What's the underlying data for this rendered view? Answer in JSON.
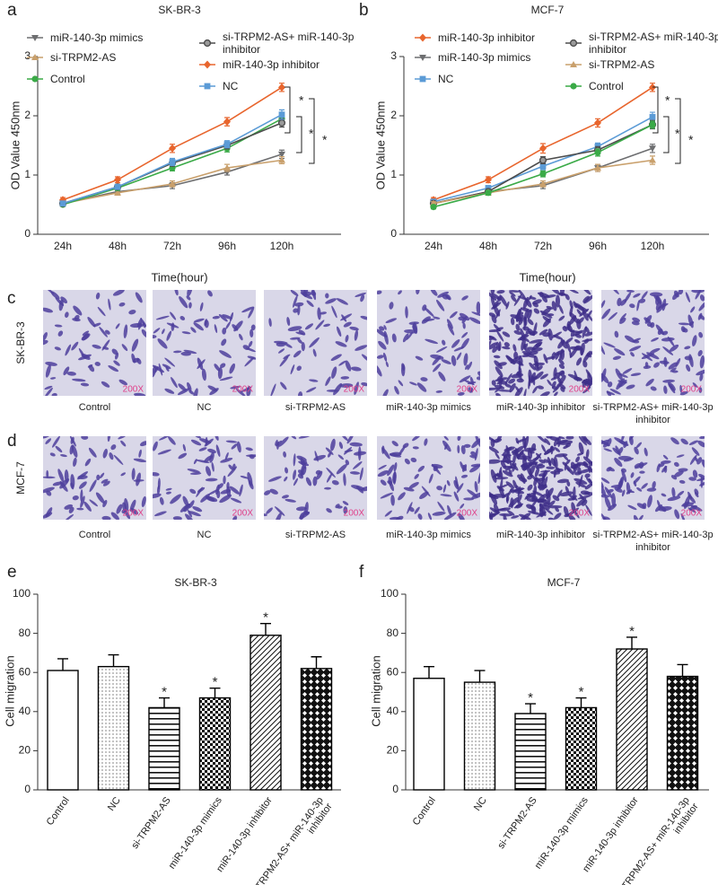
{
  "chart_data": [
    {
      "type": "line",
      "panel_label": "a",
      "title": "SK-BR-3",
      "x_label": "Time(hour)",
      "y_label": "OD Value 450nm",
      "categories": [
        "24h",
        "48h",
        "72h",
        "96h",
        "120h"
      ],
      "ylim": [
        0,
        3
      ],
      "yticks": [
        0,
        1,
        2,
        3
      ],
      "series": [
        {
          "name": "miR-140-3p mimics",
          "color": "#6d6e70",
          "marker": "triangle-down",
          "values": [
            0.52,
            0.72,
            0.82,
            1.05,
            1.35
          ],
          "errors": [
            0.03,
            0.04,
            0.05,
            0.05,
            0.07
          ]
        },
        {
          "name": "si-TRPM2-AS",
          "color": "#c9a06c",
          "marker": "triangle",
          "values": [
            0.52,
            0.7,
            0.85,
            1.12,
            1.25
          ],
          "errors": [
            0.03,
            0.04,
            0.05,
            0.06,
            0.06
          ]
        },
        {
          "name": "Control",
          "color": "#3aaa47",
          "marker": "circle",
          "values": [
            0.5,
            0.78,
            1.12,
            1.45,
            1.95
          ],
          "errors": [
            0.03,
            0.04,
            0.05,
            0.06,
            0.07
          ]
        },
        {
          "name": "si-TRPM2-AS+ miR-140-3p inhibitor",
          "color": "#4d4d4d",
          "marker": "circle-gray",
          "values": [
            0.52,
            0.8,
            1.2,
            1.5,
            1.88
          ],
          "errors": [
            0.03,
            0.04,
            0.05,
            0.06,
            0.07
          ]
        },
        {
          "name": "miR-140-3p inhibitor",
          "color": "#e8652d",
          "marker": "diamond",
          "values": [
            0.58,
            0.92,
            1.45,
            1.9,
            2.48
          ],
          "errors": [
            0.04,
            0.05,
            0.07,
            0.07,
            0.07
          ]
        },
        {
          "name": "NC",
          "color": "#5b9bd6",
          "marker": "square",
          "values": [
            0.52,
            0.8,
            1.22,
            1.52,
            2.02
          ],
          "errors": [
            0.03,
            0.04,
            0.06,
            0.06,
            0.08
          ]
        }
      ],
      "annotations": [
        "*",
        "*",
        "*"
      ]
    },
    {
      "type": "line",
      "panel_label": "b",
      "title": "MCF-7",
      "x_label": "Time(hour)",
      "y_label": "OD Value 450nm",
      "categories": [
        "24h",
        "48h",
        "72h",
        "96h",
        "120h"
      ],
      "ylim": [
        0,
        3
      ],
      "yticks": [
        0,
        1,
        2,
        3
      ],
      "series": [
        {
          "name": "miR-140-3p inhibitor",
          "color": "#e8652d",
          "marker": "diamond",
          "values": [
            0.58,
            0.92,
            1.45,
            1.88,
            2.48
          ],
          "errors": [
            0.04,
            0.05,
            0.08,
            0.07,
            0.07
          ]
        },
        {
          "name": "miR-140-3p mimics",
          "color": "#6d6e70",
          "marker": "triangle-down",
          "values": [
            0.52,
            0.72,
            0.82,
            1.12,
            1.45
          ],
          "errors": [
            0.03,
            0.04,
            0.05,
            0.06,
            0.07
          ]
        },
        {
          "name": "NC",
          "color": "#5b9bd6",
          "marker": "square",
          "values": [
            0.55,
            0.78,
            1.15,
            1.48,
            1.98
          ],
          "errors": [
            0.03,
            0.04,
            0.06,
            0.06,
            0.08
          ]
        },
        {
          "name": "si-TRPM2-AS+ miR-140-3p inhibitor",
          "color": "#4d4d4d",
          "marker": "circle-gray",
          "values": [
            0.52,
            0.72,
            1.25,
            1.42,
            1.85
          ],
          "errors": [
            0.03,
            0.04,
            0.06,
            0.06,
            0.07
          ]
        },
        {
          "name": "si-TRPM2-AS",
          "color": "#c9a06c",
          "marker": "triangle",
          "values": [
            0.52,
            0.7,
            0.85,
            1.12,
            1.25
          ],
          "errors": [
            0.03,
            0.04,
            0.05,
            0.06,
            0.07
          ]
        },
        {
          "name": "Control",
          "color": "#3aaa47",
          "marker": "circle",
          "values": [
            0.46,
            0.7,
            1.02,
            1.38,
            1.85
          ],
          "errors": [
            0.03,
            0.04,
            0.05,
            0.06,
            0.06
          ]
        }
      ],
      "annotations": [
        "*",
        "*",
        "*"
      ]
    },
    {
      "type": "bar",
      "panel_label": "e",
      "title": "SK-BR-3",
      "y_label": "Cell migration",
      "categories": [
        "Control",
        "NC",
        "si-TRPM2-AS",
        "miR-140-3p mimics",
        "miR-140-3p inhibitor",
        "si-TRPM2-AS+ miR-140-3p inhibitor"
      ],
      "values": [
        61,
        63,
        42,
        47,
        79,
        62
      ],
      "errors": [
        6,
        6,
        5,
        5,
        6,
        6
      ],
      "significance": [
        null,
        null,
        "*",
        "*",
        "*",
        null
      ],
      "patterns": [
        "none",
        "dots",
        "hlines",
        "checker",
        "diagonal",
        "cross"
      ],
      "color": "#000000",
      "ylim": [
        0,
        100
      ],
      "yticks": [
        0,
        20,
        40,
        60,
        80,
        100
      ]
    },
    {
      "type": "bar",
      "panel_label": "f",
      "title": "MCF-7",
      "y_label": "Cell migration",
      "categories": [
        "Control",
        "NC",
        "si-TRPM2-AS",
        "miR-140-3p mimics",
        "miR-140-3p inhibitor",
        "si-TRPM2-AS+ miR-140-3p inhibitor"
      ],
      "values": [
        57,
        55,
        39,
        42,
        72,
        58
      ],
      "errors": [
        6,
        6,
        5,
        5,
        6,
        6
      ],
      "significance": [
        null,
        null,
        "*",
        "*",
        "*",
        null
      ],
      "patterns": [
        "none",
        "dots",
        "hlines",
        "checker",
        "diagonal",
        "cross"
      ],
      "color": "#000000",
      "ylim": [
        0,
        100
      ],
      "yticks": [
        0,
        20,
        40,
        60,
        80,
        100
      ]
    }
  ],
  "image_panels": [
    {
      "panel_label": "c",
      "row_label": "SK-BR-3",
      "magnification": "200X",
      "captions": [
        "Control",
        "NC",
        "si-TRPM2-AS",
        "miR-140-3p mimics",
        "miR-140-3p inhibitor",
        "si-TRPM2-AS+ miR-140-3p inhibitor"
      ]
    },
    {
      "panel_label": "d",
      "row_label": "MCF-7",
      "magnification": "200X",
      "captions": [
        "Control",
        "NC",
        "si-TRPM2-AS",
        "miR-140-3p mimics",
        "miR-140-3p inhibitor",
        "si-TRPM2-AS+ miR-140-3p inhibitor"
      ]
    }
  ]
}
